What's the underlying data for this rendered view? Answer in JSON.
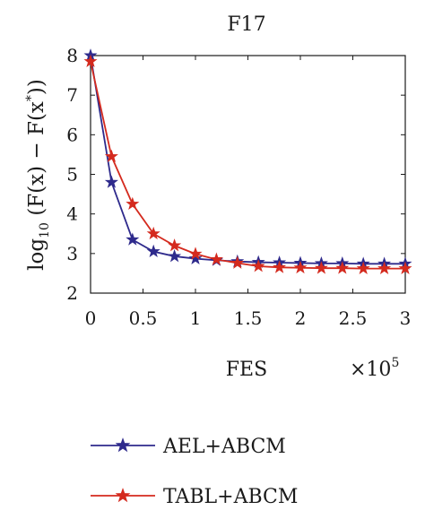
{
  "chart_data": {
    "type": "line",
    "title": "F17",
    "xlabel": "FES",
    "x_multiplier_base": "×10",
    "x_multiplier_exp": "5",
    "ylabel": {
      "prefix": "log",
      "sub": "10",
      "body": " (F(x) − F(x",
      "sup": "*",
      "suffix": "))"
    },
    "xlim": [
      0,
      3
    ],
    "ylim": [
      2,
      8
    ],
    "x_ticks": [
      0,
      0.5,
      1,
      1.5,
      2,
      2.5,
      3
    ],
    "x_tick_labels": [
      "0",
      "0.5",
      "1",
      "1.5",
      "2",
      "2.5",
      "3"
    ],
    "y_ticks": [
      2,
      3,
      4,
      5,
      6,
      7,
      8
    ],
    "y_tick_labels": [
      "2",
      "3",
      "4",
      "5",
      "6",
      "7",
      "8"
    ],
    "grid": false,
    "legend_position": "below",
    "x": [
      0,
      0.2,
      0.4,
      0.6,
      0.8,
      1.0,
      1.2,
      1.4,
      1.6,
      1.8,
      2.0,
      2.2,
      2.4,
      2.6,
      2.8,
      3.0
    ],
    "series": [
      {
        "name": "AEL+ABCM",
        "color": "#2e2a8c",
        "marker": "star",
        "values": [
          8.0,
          4.8,
          3.35,
          3.05,
          2.93,
          2.87,
          2.83,
          2.8,
          2.78,
          2.77,
          2.76,
          2.75,
          2.75,
          2.74,
          2.74,
          2.74
        ]
      },
      {
        "name": "TABL+ABCM",
        "color": "#d42a1e",
        "marker": "star",
        "values": [
          7.85,
          5.45,
          4.25,
          3.5,
          3.2,
          2.99,
          2.85,
          2.76,
          2.68,
          2.65,
          2.64,
          2.63,
          2.63,
          2.62,
          2.62,
          2.62
        ]
      }
    ]
  }
}
